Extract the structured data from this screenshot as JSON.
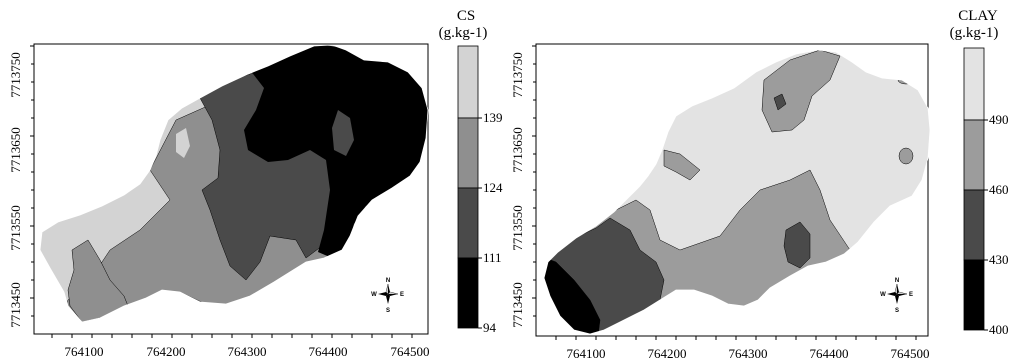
{
  "maps": [
    {
      "id": "cs",
      "legend": {
        "title_line1": "CS",
        "title_line2": "(g.kg-1)",
        "ticks": [
          "139",
          "124",
          "111",
          "94"
        ],
        "classes": [
          {
            "range": "139 and above",
            "color": "#d3d3d3"
          },
          {
            "range": "124-139",
            "color": "#8f8f8f"
          },
          {
            "range": "111-124",
            "color": "#4a4a4a"
          },
          {
            "range": "94-111",
            "color": "#000000"
          }
        ]
      },
      "y_ticks": [
        "7713750",
        "7713650",
        "7713550",
        "7713450"
      ],
      "x_ticks": [
        "764100",
        "764200",
        "764300",
        "764400",
        "764500"
      ],
      "compass": {
        "n": "N",
        "s": "S",
        "e": "E",
        "w": "W"
      }
    },
    {
      "id": "clay",
      "legend": {
        "title_line1": "CLAY",
        "title_line2": "(g.kg-1)",
        "ticks": [
          "490",
          "460",
          "430",
          "400"
        ],
        "classes": [
          {
            "range": "490 and above",
            "color": "#e3e3e3"
          },
          {
            "range": "460-490",
            "color": "#9c9c9c"
          },
          {
            "range": "430-460",
            "color": "#4a4a4a"
          },
          {
            "range": "400-430",
            "color": "#000000"
          }
        ]
      },
      "y_ticks": [
        "7713750",
        "7713650",
        "7713550",
        "7713450"
      ],
      "x_ticks": [
        "764100",
        "764200",
        "764300",
        "764400",
        "764500"
      ],
      "compass": {
        "n": "N",
        "s": "S",
        "e": "E",
        "w": "W"
      }
    }
  ]
}
